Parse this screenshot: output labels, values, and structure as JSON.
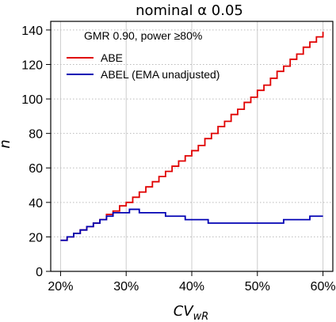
{
  "chart_data": {
    "type": "line",
    "title": "nominal α 0.05",
    "xlabel": "CV",
    "xlabel_sub": "wR",
    "ylabel": "n",
    "xlim": [
      0.185,
      0.615
    ],
    "ylim": [
      0,
      145
    ],
    "xticks": [
      0.2,
      0.3,
      0.4,
      0.5,
      0.6
    ],
    "xtick_labels": [
      "20%",
      "30%",
      "40%",
      "50%",
      "60%"
    ],
    "yticks": [
      0,
      20,
      40,
      60,
      80,
      100,
      120,
      140
    ],
    "ytick_labels": [
      "0",
      "20",
      "40",
      "60",
      "80",
      "100",
      "120",
      "140"
    ],
    "grid": true,
    "legend_placement": "top-left",
    "legend_title": "GMR 0.90, power ≥80%",
    "series": [
      {
        "name": "ABE",
        "color": "#e00000",
        "step": true,
        "points": [
          [
            0.2,
            18
          ],
          [
            0.21,
            20
          ],
          [
            0.22,
            22
          ],
          [
            0.23,
            24
          ],
          [
            0.24,
            26
          ],
          [
            0.25,
            28
          ],
          [
            0.26,
            30
          ],
          [
            0.27,
            33
          ],
          [
            0.28,
            35
          ],
          [
            0.29,
            38
          ],
          [
            0.3,
            40
          ],
          [
            0.31,
            43
          ],
          [
            0.32,
            46
          ],
          [
            0.33,
            49
          ],
          [
            0.34,
            52
          ],
          [
            0.35,
            55
          ],
          [
            0.36,
            58
          ],
          [
            0.37,
            61
          ],
          [
            0.38,
            64
          ],
          [
            0.39,
            67
          ],
          [
            0.4,
            70
          ],
          [
            0.41,
            73
          ],
          [
            0.42,
            77
          ],
          [
            0.43,
            80
          ],
          [
            0.44,
            84
          ],
          [
            0.45,
            87
          ],
          [
            0.46,
            91
          ],
          [
            0.47,
            94
          ],
          [
            0.48,
            98
          ],
          [
            0.49,
            101
          ],
          [
            0.5,
            105
          ],
          [
            0.51,
            108
          ],
          [
            0.52,
            112
          ],
          [
            0.53,
            116
          ],
          [
            0.54,
            119
          ],
          [
            0.55,
            123
          ],
          [
            0.56,
            126
          ],
          [
            0.57,
            130
          ],
          [
            0.58,
            133
          ],
          [
            0.59,
            136
          ],
          [
            0.6,
            139
          ]
        ]
      },
      {
        "name": "ABEL (EMA unadjusted)",
        "color": "#0000b4",
        "step": true,
        "points": [
          [
            0.2,
            18
          ],
          [
            0.21,
            20
          ],
          [
            0.22,
            22
          ],
          [
            0.23,
            24
          ],
          [
            0.24,
            26
          ],
          [
            0.25,
            28
          ],
          [
            0.26,
            30
          ],
          [
            0.27,
            32
          ],
          [
            0.28,
            34
          ],
          [
            0.3,
            34
          ],
          [
            0.305,
            36
          ],
          [
            0.32,
            34
          ],
          [
            0.36,
            32
          ],
          [
            0.39,
            30
          ],
          [
            0.425,
            28
          ],
          [
            0.54,
            30
          ],
          [
            0.58,
            32
          ],
          [
            0.6,
            32
          ]
        ]
      }
    ]
  }
}
